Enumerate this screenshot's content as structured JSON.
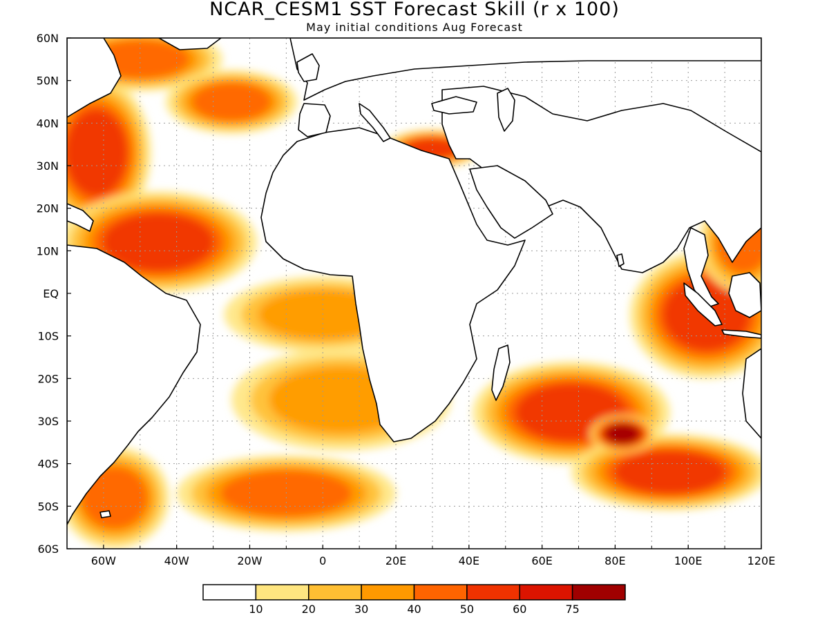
{
  "title": "NCAR_CESM1 SST Forecast Skill (r x 100)",
  "subtitle": "May initial conditions  Aug Forecast",
  "map": {
    "lon_range": [
      -70,
      120
    ],
    "lat_range": [
      -60,
      60
    ],
    "x_ticks": [
      {
        "value": -60,
        "label": "60W"
      },
      {
        "value": -40,
        "label": "40W"
      },
      {
        "value": -20,
        "label": "20W"
      },
      {
        "value": 0,
        "label": "0"
      },
      {
        "value": 20,
        "label": "20E"
      },
      {
        "value": 40,
        "label": "40E"
      },
      {
        "value": 60,
        "label": "60E"
      },
      {
        "value": 80,
        "label": "80E"
      },
      {
        "value": 100,
        "label": "100E"
      },
      {
        "value": 120,
        "label": "120E"
      }
    ],
    "y_ticks": [
      {
        "value": 60,
        "label": "60N"
      },
      {
        "value": 50,
        "label": "50N"
      },
      {
        "value": 40,
        "label": "40N"
      },
      {
        "value": 30,
        "label": "30N"
      },
      {
        "value": 20,
        "label": "20N"
      },
      {
        "value": 10,
        "label": "10N"
      },
      {
        "value": 0,
        "label": "EQ"
      },
      {
        "value": -10,
        "label": "10S"
      },
      {
        "value": -20,
        "label": "20S"
      },
      {
        "value": -30,
        "label": "30S"
      },
      {
        "value": -40,
        "label": "40S"
      },
      {
        "value": -50,
        "label": "50S"
      },
      {
        "value": -60,
        "label": "60S"
      }
    ],
    "gridlines": "dotted"
  },
  "colorbar": {
    "colors": [
      "#ffffff",
      "#ffe680",
      "#ffbf33",
      "#ff9900",
      "#ff6400",
      "#f03200",
      "#dc1400",
      "#a00000"
    ],
    "labels": [
      "10",
      "20",
      "30",
      "40",
      "50",
      "60",
      "75"
    ]
  },
  "skill_regions": [
    {
      "lon": -62,
      "lat": 33,
      "rx": 10,
      "ry": 12,
      "level": 5
    },
    {
      "lon": -45,
      "lat": 12,
      "rx": 18,
      "ry": 8,
      "level": 5
    },
    {
      "lon": -50,
      "lat": 55,
      "rx": 15,
      "ry": 5,
      "level": 4
    },
    {
      "lon": -25,
      "lat": 45,
      "rx": 12,
      "ry": 5,
      "level": 4
    },
    {
      "lon": 30,
      "lat": 34,
      "rx": 9,
      "ry": 3,
      "level": 5
    },
    {
      "lon": 105,
      "lat": -5,
      "rx": 14,
      "ry": 10,
      "level": 5
    },
    {
      "lon": 68,
      "lat": -28,
      "rx": 18,
      "ry": 8,
      "level": 5
    },
    {
      "lon": 95,
      "lat": -42,
      "rx": 18,
      "ry": 6,
      "level": 5
    },
    {
      "lon": -10,
      "lat": -47,
      "rx": 20,
      "ry": 6,
      "level": 4
    },
    {
      "lon": -57,
      "lat": -48,
      "rx": 10,
      "ry": 8,
      "level": 4
    },
    {
      "lon": 5,
      "lat": -25,
      "rx": 20,
      "ry": 8,
      "level": 3
    },
    {
      "lon": 0,
      "lat": -5,
      "rx": 18,
      "ry": 6,
      "level": 3
    },
    {
      "lon": 82,
      "lat": -33,
      "rx": 6,
      "ry": 3,
      "level": 7
    },
    {
      "lon": 115,
      "lat": 12,
      "rx": 8,
      "ry": 8,
      "level": 4
    }
  ]
}
